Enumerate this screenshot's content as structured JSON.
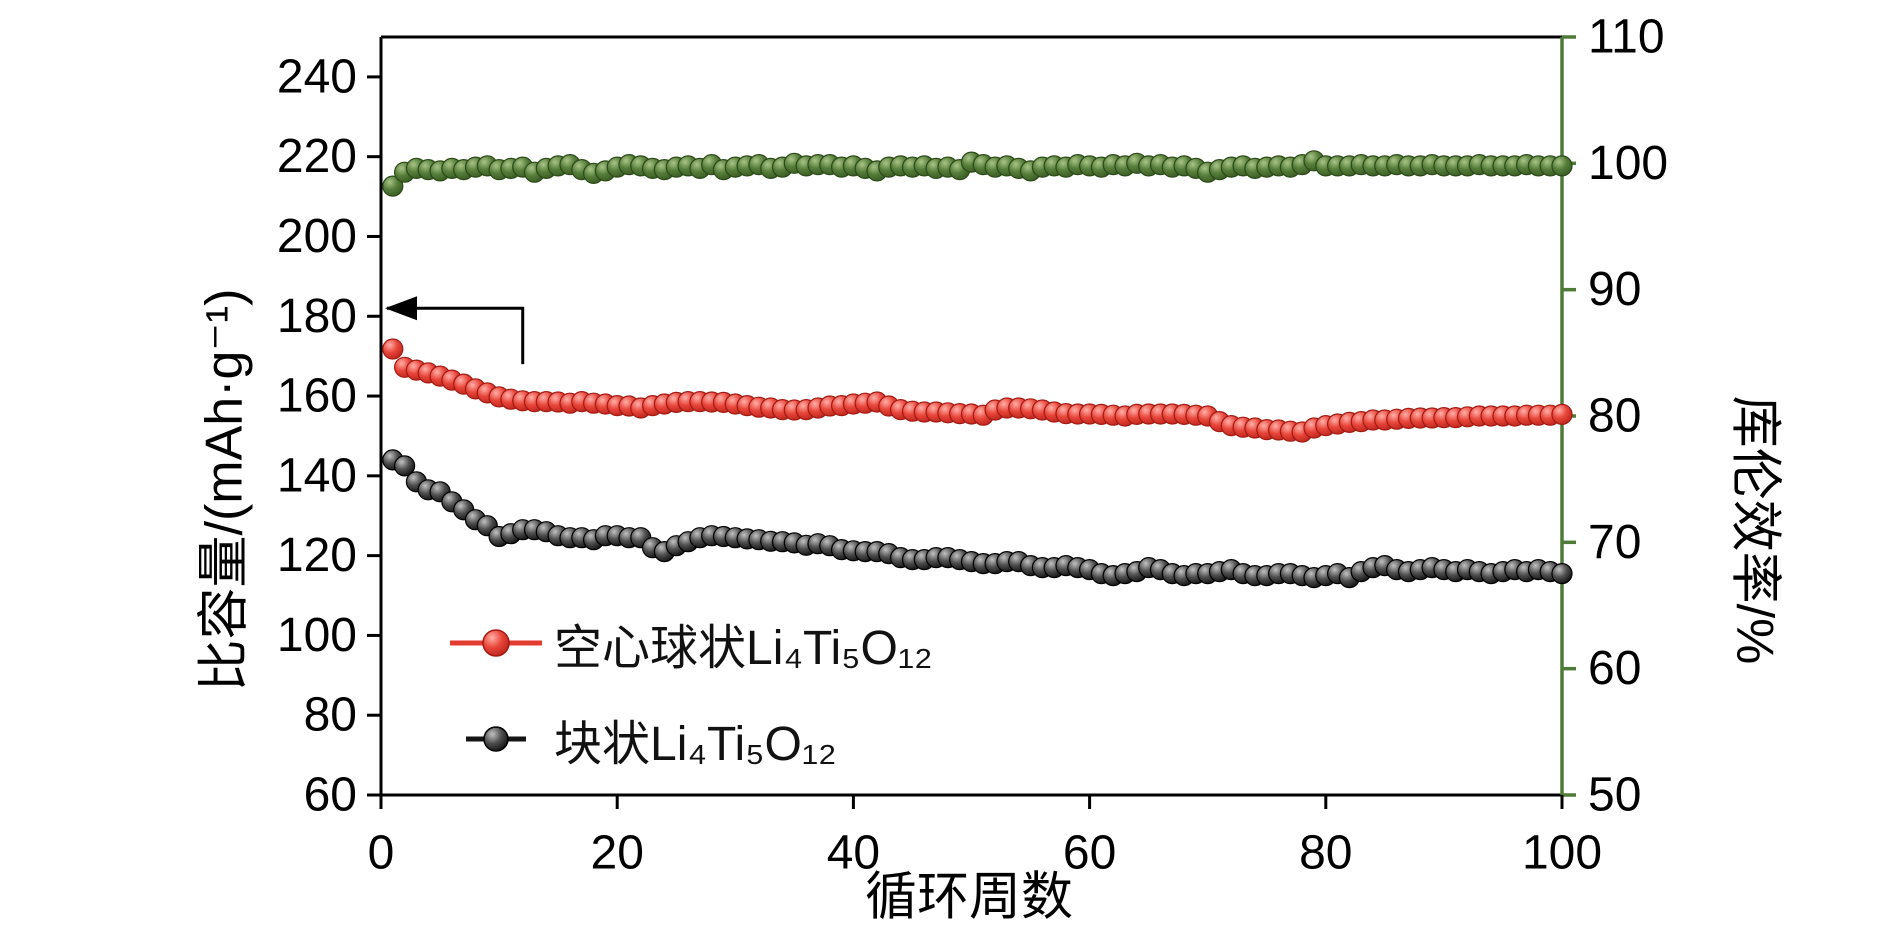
{
  "colors": {
    "hollow_red": "#e23b30",
    "bulk_black": "#141414",
    "efficiency_green": "#4f7a38",
    "right_axis_green": "#4f7a38",
    "frame_black": "#000000",
    "background": "#ffffff"
  },
  "legend": {
    "items": [
      {
        "id": "hollow",
        "label": "空心球状Li₄Ti₅O₁₂",
        "color": "#e23b30"
      },
      {
        "id": "bulk",
        "label": "块状Li₄Ti₅O₁₂",
        "color": "#141414"
      }
    ]
  },
  "chart_data": {
    "type": "scatter",
    "title": "",
    "xlabel": "循环周数",
    "ylabel_left": "比容量/(mAh·g⁻¹)",
    "ylabel_right": "库伦效率/%",
    "x_range": [
      0,
      100
    ],
    "y_left_range": [
      60,
      240
    ],
    "y_right_range": [
      50,
      110
    ],
    "x_ticks": [
      0,
      20,
      40,
      60,
      80,
      100
    ],
    "y_left_ticks": [
      60,
      80,
      100,
      120,
      140,
      160,
      180,
      200,
      220,
      240
    ],
    "y_right_ticks": [
      50,
      60,
      70,
      80,
      90,
      100,
      110
    ],
    "grid": false,
    "legend_position": "inside-lower-left",
    "x": {
      "start": 1,
      "step": 1,
      "count": 100
    },
    "annotation_arrow": {
      "points_to_left_axis_at_y": 182,
      "corner_x": 12,
      "drop_to_y": 168
    },
    "series": [
      {
        "id": "ce",
        "name": "库伦效率",
        "axis": "right",
        "color": "#4f7a38",
        "values": [
          98.2,
          99.3,
          99.6,
          99.5,
          99.4,
          99.6,
          99.5,
          99.7,
          99.8,
          99.5,
          99.6,
          99.7,
          99.3,
          99.6,
          99.8,
          99.9,
          99.5,
          99.2,
          99.4,
          99.7,
          99.9,
          99.8,
          99.6,
          99.5,
          99.7,
          99.8,
          99.6,
          99.9,
          99.5,
          99.7,
          99.8,
          99.9,
          99.6,
          99.7,
          100.0,
          99.8,
          99.9,
          99.9,
          99.7,
          99.8,
          99.6,
          99.4,
          99.7,
          99.8,
          99.7,
          99.8,
          99.6,
          99.7,
          99.5,
          100.1,
          99.9,
          99.7,
          99.8,
          99.6,
          99.4,
          99.7,
          99.8,
          99.7,
          99.9,
          99.8,
          99.7,
          99.9,
          99.8,
          100.0,
          99.8,
          99.9,
          99.7,
          99.8,
          99.6,
          99.3,
          99.5,
          99.7,
          99.8,
          99.6,
          99.7,
          99.8,
          99.7,
          99.9,
          100.2,
          99.8,
          99.8,
          99.8,
          99.9,
          99.8,
          99.8,
          99.9,
          99.8,
          99.8,
          99.9,
          99.8,
          99.8,
          99.8,
          99.9,
          99.8,
          99.8,
          99.8,
          99.9,
          99.8,
          99.8,
          99.8
        ]
      },
      {
        "id": "hollow",
        "name": "空心球状Li₄Ti₅O₁₂ 比容量",
        "axis": "left",
        "color": "#e23b30",
        "values": [
          171.8,
          167.2,
          166.5,
          165.8,
          165.0,
          164.0,
          163.0,
          161.8,
          160.8,
          159.8,
          159.2,
          158.8,
          158.6,
          158.6,
          158.5,
          158.2,
          158.6,
          158.2,
          158.0,
          157.6,
          157.5,
          157.0,
          157.6,
          158.0,
          158.4,
          158.6,
          158.6,
          158.5,
          158.4,
          158.0,
          157.6,
          157.2,
          157.0,
          156.6,
          156.5,
          156.6,
          157.0,
          157.5,
          157.6,
          158.0,
          158.2,
          158.5,
          157.5,
          156.6,
          156.2,
          156.0,
          156.0,
          155.8,
          155.6,
          155.5,
          155.2,
          156.5,
          157.0,
          157.0,
          156.8,
          156.5,
          156.0,
          155.6,
          155.5,
          155.5,
          155.4,
          155.2,
          155.0,
          155.4,
          155.5,
          155.5,
          155.5,
          155.4,
          155.2,
          155.0,
          153.6,
          152.6,
          152.2,
          152.0,
          151.6,
          151.5,
          151.2,
          151.0,
          152.0,
          152.6,
          153.0,
          153.4,
          153.6,
          154.0,
          154.0,
          154.2,
          154.4,
          154.5,
          154.5,
          154.6,
          154.6,
          154.8,
          155.0,
          155.0,
          155.0,
          155.0,
          155.2,
          155.2,
          155.2,
          155.4
        ]
      },
      {
        "id": "bulk",
        "name": "块状Li₄Ti₅O₁₂ 比容量",
        "axis": "left",
        "color": "#141414",
        "values": [
          144.0,
          142.5,
          138.5,
          136.5,
          136.0,
          133.5,
          131.5,
          129.0,
          127.5,
          124.8,
          125.5,
          126.5,
          126.5,
          126.0,
          125.0,
          124.5,
          124.5,
          124.0,
          125.0,
          125.0,
          124.5,
          124.5,
          122.0,
          121.0,
          122.5,
          123.5,
          124.5,
          125.0,
          124.8,
          124.5,
          124.2,
          124.0,
          123.6,
          123.5,
          123.2,
          122.6,
          123.0,
          122.5,
          121.5,
          121.2,
          121.0,
          121.0,
          120.5,
          119.5,
          119.0,
          119.0,
          119.5,
          119.5,
          119.0,
          118.5,
          118.0,
          118.0,
          118.5,
          118.5,
          117.5,
          117.0,
          117.0,
          117.5,
          117.0,
          116.5,
          115.5,
          115.0,
          115.5,
          116.0,
          117.0,
          116.5,
          115.5,
          115.0,
          115.5,
          115.5,
          116.0,
          116.5,
          115.5,
          115.0,
          115.0,
          115.5,
          115.5,
          115.0,
          114.5,
          115.0,
          115.5,
          114.5,
          116.0,
          117.0,
          117.5,
          116.5,
          116.0,
          116.5,
          117.0,
          116.5,
          116.0,
          116.5,
          116.0,
          115.5,
          116.0,
          116.5,
          116.0,
          116.5,
          116.0,
          115.5
        ]
      }
    ]
  }
}
